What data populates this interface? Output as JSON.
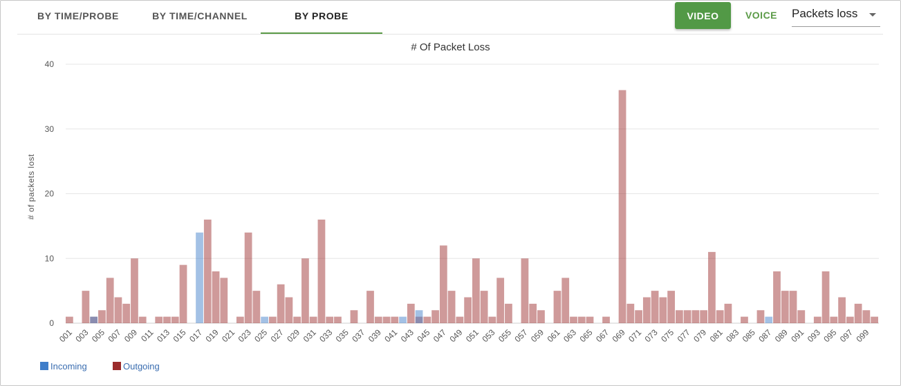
{
  "tabs": [
    {
      "label": "BY TIME/PROBE",
      "active": false
    },
    {
      "label": "BY TIME/CHANNEL",
      "active": false
    },
    {
      "label": "BY PROBE",
      "active": true
    }
  ],
  "toolbar": {
    "video_label": "VIDEO",
    "voice_label": "VOICE",
    "metric_select": "Packets loss"
  },
  "colors": {
    "accent": "#529946",
    "incoming": "#3f7dc9",
    "outgoing": "#9b2b2b"
  },
  "chart_data": {
    "type": "bar",
    "title": "# Of Packet Loss",
    "ylabel": "# of packets lost",
    "xlabel": "",
    "ylim": [
      0,
      40
    ],
    "yticks": [
      0,
      10,
      20,
      30,
      40
    ],
    "grid": true,
    "legend_position": "bottom-left",
    "categories": [
      "001",
      "002",
      "003",
      "004",
      "005",
      "006",
      "007",
      "008",
      "009",
      "010",
      "011",
      "012",
      "013",
      "014",
      "015",
      "016",
      "017",
      "018",
      "019",
      "020",
      "021",
      "022",
      "023",
      "024",
      "025",
      "026",
      "027",
      "028",
      "029",
      "030",
      "031",
      "032",
      "033",
      "034",
      "035",
      "036",
      "037",
      "038",
      "039",
      "040",
      "041",
      "042",
      "043",
      "044",
      "045",
      "046",
      "047",
      "048",
      "049",
      "050",
      "051",
      "052",
      "053",
      "054",
      "055",
      "056",
      "057",
      "058",
      "059",
      "060",
      "061",
      "062",
      "063",
      "064",
      "065",
      "066",
      "067",
      "068",
      "069",
      "070",
      "071",
      "072",
      "073",
      "074",
      "075",
      "076",
      "077",
      "078",
      "079",
      "080",
      "081",
      "082",
      "083",
      "084",
      "085",
      "086",
      "087",
      "088",
      "089",
      "090",
      "091",
      "092",
      "093",
      "094",
      "095",
      "096",
      "097",
      "098",
      "099",
      "100"
    ],
    "xtick_labels": [
      "001",
      "003",
      "005",
      "007",
      "009",
      "011",
      "013",
      "015",
      "017",
      "019",
      "021",
      "023",
      "025",
      "027",
      "029",
      "031",
      "033",
      "035",
      "037",
      "039",
      "041",
      "043",
      "045",
      "047",
      "049",
      "051",
      "053",
      "055",
      "057",
      "059",
      "061",
      "063",
      "065",
      "067",
      "069",
      "071",
      "073",
      "075",
      "077",
      "079",
      "081",
      "083",
      "085",
      "087",
      "089",
      "091",
      "093",
      "095",
      "097",
      "099"
    ],
    "series": [
      {
        "name": "Incoming",
        "values": [
          0,
          0,
          0,
          1,
          0,
          0,
          0,
          0,
          0,
          0,
          0,
          0,
          0,
          0,
          0,
          0,
          14,
          0,
          0,
          0,
          0,
          0,
          0,
          0,
          1,
          0,
          0,
          0,
          0,
          0,
          0,
          0,
          0,
          0,
          0,
          0,
          0,
          0,
          0,
          0,
          0,
          1,
          0,
          2,
          0,
          0,
          0,
          0,
          0,
          0,
          0,
          0,
          0,
          0,
          0,
          0,
          0,
          0,
          0,
          0,
          0,
          0,
          0,
          0,
          0,
          0,
          0,
          0,
          0,
          0,
          0,
          0,
          0,
          0,
          0,
          0,
          0,
          0,
          0,
          0,
          0,
          0,
          0,
          0,
          0,
          0,
          1,
          0,
          0,
          0,
          0,
          0,
          0,
          0,
          0,
          0,
          0,
          0,
          0,
          0
        ]
      },
      {
        "name": "Outgoing",
        "values": [
          1,
          0,
          5,
          1,
          2,
          7,
          4,
          3,
          10,
          1,
          0,
          1,
          1,
          1,
          9,
          0,
          0,
          16,
          8,
          7,
          0,
          1,
          14,
          5,
          0,
          1,
          6,
          4,
          1,
          10,
          1,
          16,
          1,
          1,
          0,
          2,
          0,
          5,
          1,
          1,
          1,
          0,
          3,
          1,
          1,
          2,
          12,
          5,
          1,
          4,
          10,
          5,
          1,
          7,
          3,
          0,
          10,
          3,
          2,
          0,
          5,
          7,
          1,
          1,
          1,
          0,
          1,
          0,
          36,
          3,
          2,
          4,
          5,
          4,
          5,
          2,
          2,
          2,
          2,
          11,
          2,
          3,
          0,
          1,
          0,
          2,
          0,
          8,
          5,
          5,
          2,
          0,
          1,
          8,
          1,
          4,
          1,
          3,
          2,
          1
        ]
      }
    ]
  }
}
